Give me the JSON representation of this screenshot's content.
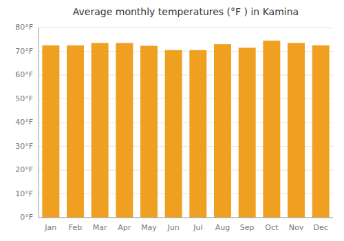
{
  "chart_data": {
    "type": "bar",
    "title": "Average monthly temperatures (°F ) in Kamina",
    "categories": [
      "Jan",
      "Feb",
      "Mar",
      "Apr",
      "May",
      "Jun",
      "Jul",
      "Aug",
      "Sep",
      "Oct",
      "Nov",
      "Dec"
    ],
    "values": [
      72.5,
      72.5,
      73.5,
      73.5,
      72.3,
      70.5,
      70.5,
      73.0,
      71.5,
      74.5,
      73.5,
      72.5
    ],
    "color": "#F0A020",
    "ylim": [
      0,
      80
    ],
    "yticks": [
      {
        "value": 0,
        "label": "0°F"
      },
      {
        "value": 10,
        "label": "10°F"
      },
      {
        "value": 20,
        "label": "20°F"
      },
      {
        "value": 30,
        "label": "30°F"
      },
      {
        "value": 40,
        "label": "40°F"
      },
      {
        "value": 50,
        "label": "50°F"
      },
      {
        "value": 60,
        "label": "60°F"
      },
      {
        "value": 70,
        "label": "70°F"
      },
      {
        "value": 80,
        "label": "80°F"
      }
    ],
    "grid": true
  }
}
